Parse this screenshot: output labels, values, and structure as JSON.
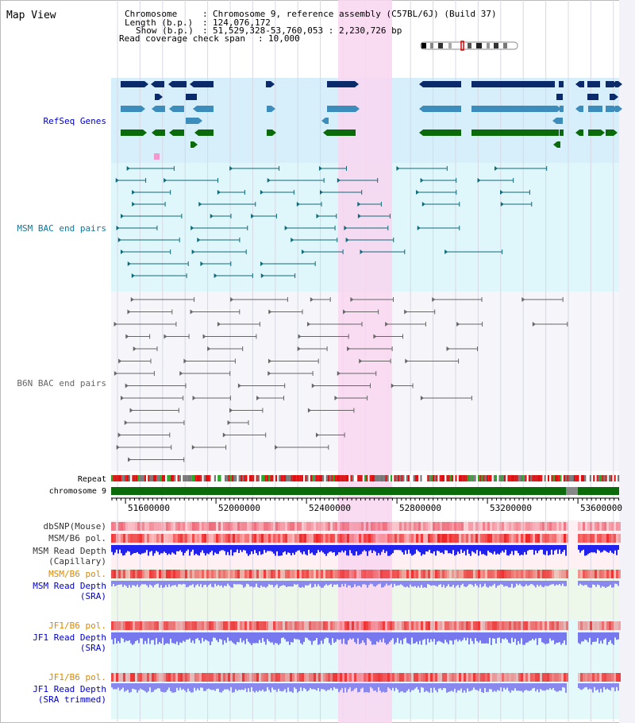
{
  "panel_title": "Map View",
  "header": {
    "rows": [
      {
        "key": "Chromosome",
        "value": "Chromosome 9, reference assembly (C57BL/6J) (Build 37)"
      },
      {
        "key": "Length (b.p.)",
        "value": "124,076,172"
      },
      {
        "key": "Show (b.p.)",
        "value": "51,529,328-53,760,053 : 2,230,726 bp"
      },
      {
        "key": "Read coverage check span",
        "value": "10,000"
      }
    ]
  },
  "tracks": {
    "refseq": "RefSeq Genes",
    "msm_bac": "MSM BAC end pairs",
    "b6n_bac": "B6N BAC end pairs",
    "repeat": "Repeat",
    "chromosome": "chromosome 9",
    "dbsnp": "dbSNP(Mouse)",
    "msm_b6_pol_1": "MSM/B6 pol.",
    "msm_read_depth_cap_1": "MSM Read Depth",
    "msm_read_depth_cap_2": "(Capillary)",
    "msm_b6_pol_2": "MSM/B6 pol.",
    "msm_read_depth_sra_1": "MSM Read Depth",
    "msm_read_depth_sra_2": "(SRA)",
    "jf1_b6_pol_1": "JF1/B6 pol.",
    "jf1_read_depth_1": "JF1 Read Depth",
    "jf1_read_depth_2": "(SRA)",
    "jf1_b6_pol_2": "JF1/B6 pol.",
    "jf1_read_depth_trim_1": "JF1 Read Depth",
    "jf1_read_depth_trim_2": "(SRA trimmed)"
  },
  "axis": {
    "ticks": [
      "51600000",
      "52000000",
      "52400000",
      "52800000",
      "53200000",
      "53600000"
    ]
  },
  "colors": {
    "highlight": "#f9d6f0",
    "refseq_bg": "#d6effa",
    "msm_bg": "#dff7fa",
    "gene_dark": "#0b2a6a",
    "gene_mid": "#3c8dbc",
    "gene_green": "#0b6b0b",
    "msm_feature": "#0f6a7a",
    "b6n_feature": "#666666",
    "label_blue": "#0000cc",
    "label_teal": "#117799",
    "label_orange": "#dd8800"
  }
}
